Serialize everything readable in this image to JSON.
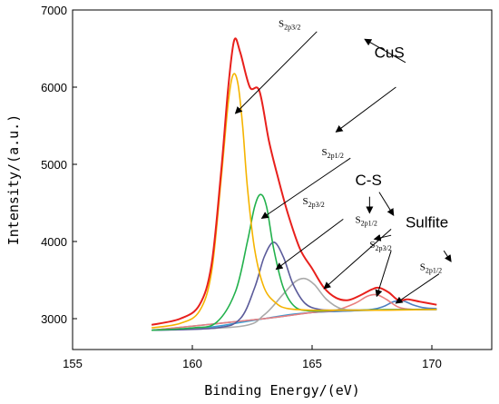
{
  "chart_data": {
    "type": "line",
    "xlabel": "Binding Energy/(eV)",
    "ylabel": "Intensity/(a.u.)",
    "xlim": [
      155,
      172.5
    ],
    "ylim": [
      2600,
      7000
    ],
    "xticks": [
      155,
      160,
      165,
      170
    ],
    "yticks": [
      3000,
      4000,
      5000,
      6000,
      7000
    ],
    "grid": false,
    "series": [
      {
        "color": "#e8201c",
        "x": [
          158.3,
          159.5,
          160.3,
          160.8,
          161.2,
          161.5,
          161.75,
          162.0,
          162.4,
          162.8,
          163.2,
          163.6,
          164.0,
          164.5,
          165.0,
          165.5,
          166.0,
          166.5,
          167.0,
          167.5,
          167.8,
          168.2,
          168.6,
          169.0,
          169.5,
          170.2
        ],
        "y": [
          2920,
          3000,
          3180,
          3700,
          4900,
          6000,
          6610,
          6450,
          6000,
          5950,
          5300,
          4800,
          4350,
          3900,
          3650,
          3400,
          3270,
          3240,
          3300,
          3380,
          3400,
          3340,
          3240,
          3250,
          3220,
          3180
        ]
      },
      {
        "color": "#f5b400",
        "x": [
          158.3,
          159.5,
          160.3,
          160.8,
          161.2,
          161.5,
          161.7,
          161.9,
          162.1,
          162.3,
          162.6,
          163.0,
          163.5,
          164.0,
          165.0,
          166.0,
          167.0,
          168.0,
          170.2
        ],
        "y": [
          2880,
          2940,
          3100,
          3600,
          4800,
          5800,
          6160,
          6050,
          5500,
          4700,
          3900,
          3400,
          3200,
          3130,
          3110,
          3110,
          3110,
          3110,
          3120
        ]
      },
      {
        "color": "#22b14c",
        "x": [
          158.3,
          160.0,
          161.0,
          161.8,
          162.3,
          162.6,
          162.85,
          163.1,
          163.4,
          163.8,
          164.3,
          165.0,
          166.0,
          167.0,
          168.0,
          170.2
        ],
        "y": [
          2850,
          2880,
          2950,
          3350,
          4000,
          4450,
          4610,
          4450,
          3900,
          3400,
          3150,
          3100,
          3110,
          3110,
          3115,
          3120
        ]
      },
      {
        "color": "#5b5b9a",
        "x": [
          158.3,
          161.0,
          162.0,
          162.6,
          163.0,
          163.4,
          163.8,
          164.2,
          164.7,
          165.3,
          166.0,
          167.0,
          168.0,
          170.2
        ],
        "y": [
          2850,
          2880,
          3000,
          3400,
          3800,
          3990,
          3800,
          3450,
          3200,
          3120,
          3110,
          3110,
          3115,
          3120
        ]
      },
      {
        "color": "#a9a9a9",
        "x": [
          158.3,
          162.0,
          163.0,
          163.8,
          164.3,
          164.7,
          165.1,
          165.6,
          166.2,
          167.0,
          168.0,
          170.2
        ],
        "y": [
          2850,
          2900,
          3050,
          3320,
          3480,
          3520,
          3440,
          3250,
          3130,
          3110,
          3115,
          3120
        ]
      },
      {
        "color": "#e98080",
        "x": [
          158.3,
          163.0,
          165.0,
          166.0,
          166.8,
          167.3,
          167.7,
          168.1,
          168.6,
          169.2,
          170.2
        ],
        "y": [
          2850,
          3000,
          3080,
          3110,
          3200,
          3290,
          3310,
          3250,
          3150,
          3120,
          3120
        ]
      },
      {
        "color": "#4e7fc0",
        "x": [
          158.3,
          163.0,
          165.0,
          166.5,
          167.5,
          168.0,
          168.4,
          168.8,
          169.2,
          169.7,
          170.2
        ],
        "y": [
          2850,
          3000,
          3080,
          3100,
          3120,
          3160,
          3220,
          3230,
          3180,
          3140,
          3130
        ]
      },
      {
        "color": "#3a9fd4",
        "x": [
          158.3,
          160.0,
          161.0,
          162.0,
          163.0,
          164.0,
          165.0,
          166.0,
          167.0,
          168.0,
          169.0,
          170.2
        ],
        "y": [
          2850,
          2865,
          2900,
          2950,
          3000,
          3050,
          3080,
          3095,
          3105,
          3112,
          3118,
          3125
        ]
      }
    ],
    "annotations": [
      {
        "text": "S",
        "sub": "2p3/2",
        "x": 163.6,
        "y": 6780,
        "size": "small"
      },
      {
        "text": "CuS",
        "x": 167.6,
        "y": 6380,
        "size": "big"
      },
      {
        "text": "S",
        "sub": "2p1/2",
        "x": 165.4,
        "y": 5120,
        "size": "small"
      },
      {
        "text": "C-S",
        "x": 166.8,
        "y": 4730,
        "size": "big"
      },
      {
        "text": "S",
        "sub": "2p3/2",
        "x": 164.6,
        "y": 4480,
        "size": "small"
      },
      {
        "text": "S",
        "sub": "2p1/2",
        "x": 166.8,
        "y": 4240,
        "size": "small"
      },
      {
        "text": "Sulfite",
        "x": 168.9,
        "y": 4180,
        "size": "big"
      },
      {
        "text": "S",
        "sub": "2p3/2",
        "x": 167.4,
        "y": 3920,
        "size": "small"
      },
      {
        "text": "S",
        "sub": "2p1/2",
        "x": 169.5,
        "y": 3630,
        "size": "small"
      }
    ],
    "arrows": [
      {
        "from": [
          165.2,
          6720
        ],
        "to": [
          161.8,
          5660
        ]
      },
      {
        "from": [
          168.9,
          6320
        ],
        "to": [
          167.2,
          6620
        ]
      },
      {
        "from": [
          168.5,
          6000
        ],
        "to": [
          166.0,
          5420
        ]
      },
      {
        "from": [
          166.6,
          5080
        ],
        "to": [
          162.9,
          4300
        ]
      },
      {
        "from": [
          167.4,
          4580
        ],
        "to": [
          167.4,
          4370
        ]
      },
      {
        "from": [
          167.8,
          4640
        ],
        "to": [
          168.4,
          4340
        ]
      },
      {
        "from": [
          166.3,
          4290
        ],
        "to": [
          163.5,
          3640
        ]
      },
      {
        "from": [
          168.3,
          4080
        ],
        "to": [
          167.6,
          4030
        ]
      },
      {
        "from": [
          168.3,
          4160
        ],
        "to": [
          165.5,
          3390
        ]
      },
      {
        "from": [
          168.3,
          3880
        ],
        "to": [
          167.7,
          3290
        ]
      },
      {
        "from": [
          170.3,
          3580
        ],
        "to": [
          168.5,
          3200
        ]
      },
      {
        "from": [
          170.5,
          3880
        ],
        "to": [
          170.8,
          3740
        ]
      }
    ]
  }
}
